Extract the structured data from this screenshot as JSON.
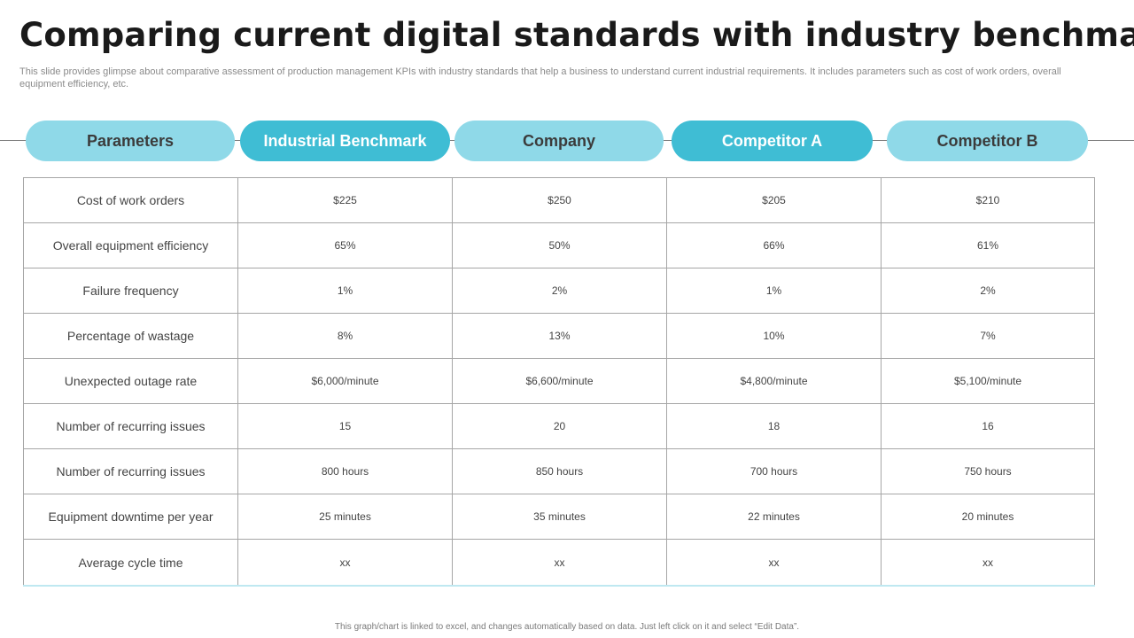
{
  "title": "Comparing current digital standards with industry benchmark",
  "subtitle": "This slide provides glimpse about comparative assessment of production management KPIs with industry standards that help a business to understand current industrial requirements. It includes parameters such as cost of work orders, overall equipment efficiency, etc.",
  "headers": [
    "Parameters",
    "Industrial Benchmark",
    "Company",
    "Competitor A",
    "Competitor B"
  ],
  "colors": {
    "pill_light": "#8fd9e8",
    "pill_dark": "#3fbdd4"
  },
  "rows": [
    [
      "Cost of work orders",
      "$225",
      "$250",
      "$205",
      "$210"
    ],
    [
      "Overall equipment efficiency",
      "65%",
      "50%",
      "66%",
      "61%"
    ],
    [
      "Failure frequency",
      "1%",
      "2%",
      "1%",
      "2%"
    ],
    [
      "Percentage of wastage",
      "8%",
      "13%",
      "10%",
      "7%"
    ],
    [
      "Unexpected outage rate",
      "$6,000/minute",
      "$6,600/minute",
      "$4,800/minute",
      "$5,100/minute"
    ],
    [
      "Number of recurring issues",
      "15",
      "20",
      "18",
      "16"
    ],
    [
      "Number of recurring issues",
      "800 hours",
      "850 hours",
      "700 hours",
      "750 hours"
    ],
    [
      "Equipment downtime per year",
      "25 minutes",
      "35 minutes",
      "22 minutes",
      "20 minutes"
    ],
    [
      "Average cycle time",
      "xx",
      "xx",
      "xx",
      "xx"
    ]
  ],
  "footnote": "This graph/chart is linked to excel, and changes automatically based on data. Just left click on it and select “Edit Data”."
}
